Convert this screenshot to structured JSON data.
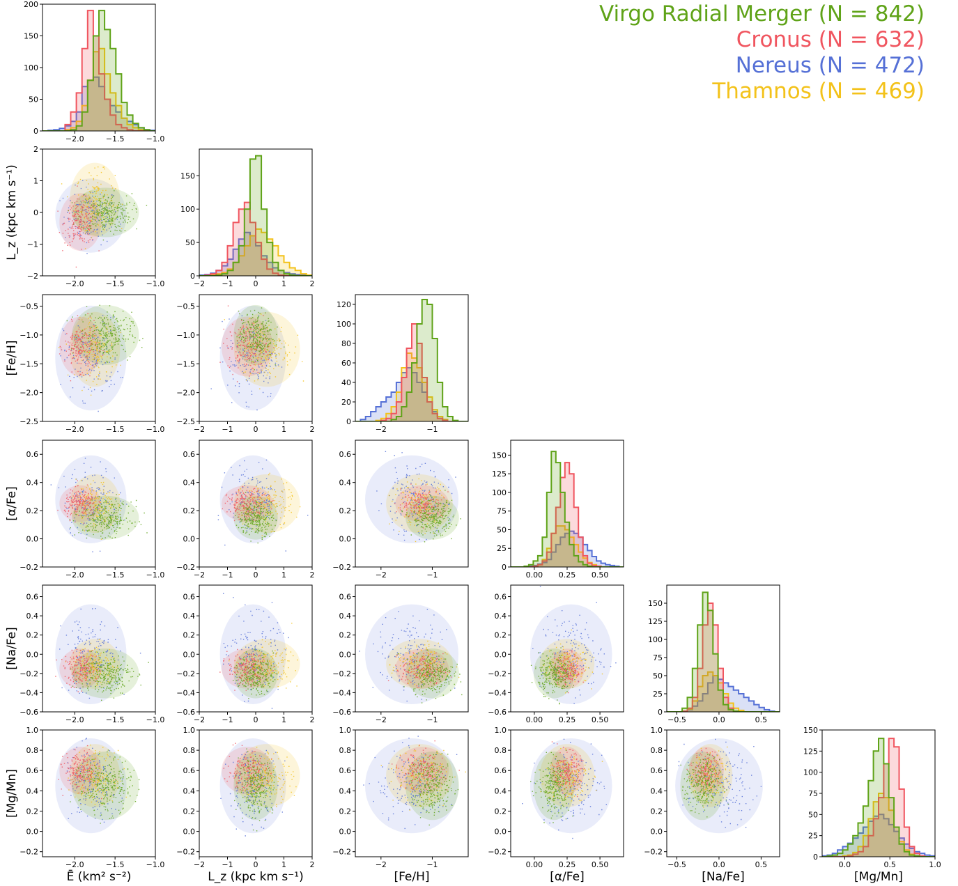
{
  "legend": [
    {
      "label": "Virgo Radial Merger (N = 842)",
      "color": "#5fa318"
    },
    {
      "label": "Cronus (N = 632)",
      "color": "#f0555f"
    },
    {
      "label": "Nereus (N = 472)",
      "color": "#5570d6"
    },
    {
      "label": "Thamnos (N = 469)",
      "color": "#f3c21a"
    }
  ],
  "chart_data": {
    "type": "corner",
    "variables": [
      {
        "id": "E",
        "label": "Ē (km² s⁻²)",
        "range": [
          -2.4,
          -1.0
        ],
        "ticks": [
          -2.0,
          -1.5,
          -1.0
        ],
        "tick_labels": [
          "−2.0",
          "−1.5",
          "−1.0"
        ]
      },
      {
        "id": "Lz",
        "label": "L_z (kpc km s⁻¹)",
        "range": [
          -2,
          2
        ],
        "ticks": [
          -2,
          -1,
          0,
          1,
          2
        ],
        "tick_labels": [
          "−2",
          "−1",
          "0",
          "1",
          "2"
        ]
      },
      {
        "id": "FeH",
        "label": "[Fe/H]",
        "range": [
          -2.5,
          -0.3
        ],
        "ticks": [
          -2,
          -1
        ],
        "tick_labels": [
          "−2",
          "−1"
        ]
      },
      {
        "id": "aFe",
        "label": "[α/Fe]",
        "range": [
          -0.18,
          0.68
        ],
        "ticks": [
          0.0,
          0.25,
          0.5
        ],
        "tick_labels": [
          "0.00",
          "0.25",
          "0.50"
        ]
      },
      {
        "id": "NaFe",
        "label": "[Na/Fe]",
        "range": [
          -0.62,
          0.72
        ],
        "ticks": [
          -0.5,
          0.0,
          0.5
        ],
        "tick_labels": [
          "−0.5",
          "0.0",
          "0.5"
        ]
      },
      {
        "id": "MgMn",
        "label": "[Mg/Mn]",
        "range": [
          -0.25,
          1.0
        ],
        "ticks": [
          0.0,
          0.5,
          1.0
        ],
        "tick_labels": [
          "0.0",
          "0.5",
          "1.0"
        ]
      }
    ],
    "scatter_y_axes": {
      "Lz": {
        "range": [
          -2,
          2
        ],
        "ticks": [
          -2,
          -1,
          0,
          1,
          2
        ],
        "tick_labels": [
          "−2",
          "−1",
          "0",
          "1",
          "2"
        ]
      },
      "FeH": {
        "range": [
          -2.5,
          -0.3
        ],
        "ticks": [
          -2.5,
          -2.0,
          -1.5,
          -1.0,
          -0.5
        ],
        "tick_labels": [
          "−2.5",
          "−2.0",
          "−1.5",
          "−1.0",
          "−0.5"
        ]
      },
      "aFe": {
        "range": [
          -0.2,
          0.7
        ],
        "ticks": [
          -0.2,
          0.0,
          0.2,
          0.4,
          0.6
        ],
        "tick_labels": [
          "−0.2",
          "0.0",
          "0.2",
          "0.4",
          "0.6"
        ]
      },
      "NaFe": {
        "range": [
          -0.6,
          0.72
        ],
        "ticks": [
          -0.6,
          -0.4,
          -0.2,
          0.0,
          0.2,
          0.4,
          0.6
        ],
        "tick_labels": [
          "−0.6",
          "−0.4",
          "−0.2",
          "0.0",
          "0.2",
          "0.4",
          "0.6"
        ]
      },
      "MgMn": {
        "range": [
          -0.25,
          1.0
        ],
        "ticks": [
          -0.2,
          0.0,
          0.2,
          0.4,
          0.6,
          0.8,
          1.0
        ],
        "tick_labels": [
          "−0.2",
          "0.0",
          "0.2",
          "0.4",
          "0.6",
          "0.8",
          "1.0"
        ]
      }
    },
    "hist_y_axes": [
      {
        "max": 200,
        "ticks": [
          0,
          50,
          100,
          150,
          200
        ]
      },
      {
        "max": 190,
        "ticks": [
          0,
          50,
          100,
          150
        ]
      },
      {
        "max": 130,
        "ticks": [
          0,
          20,
          40,
          60,
          80,
          100,
          120
        ]
      },
      {
        "max": 170,
        "ticks": [
          0,
          25,
          50,
          75,
          100,
          125,
          150
        ]
      },
      {
        "max": 175,
        "ticks": [
          0,
          25,
          50,
          75,
          100,
          125,
          150
        ]
      },
      {
        "max": 150,
        "ticks": [
          0,
          25,
          50,
          75,
          100,
          125,
          150
        ]
      }
    ],
    "groups": [
      {
        "name": "Virgo Radial Merger",
        "n": 842,
        "color": "#5fa318",
        "mean": {
          "E": -1.62,
          "Lz": 0.0,
          "FeH": -1.0,
          "aFe": 0.15,
          "NaFe": -0.2,
          "MgMn": 0.45
        },
        "sd": {
          "E": 0.16,
          "Lz": 0.3,
          "FeH": 0.2,
          "aFe": 0.06,
          "NaFe": 0.1,
          "MgMn": 0.13
        }
      },
      {
        "name": "Cronus",
        "n": 632,
        "color": "#f0555f",
        "mean": {
          "E": -1.93,
          "Lz": -0.3,
          "FeH": -1.2,
          "aFe": 0.25,
          "NaFe": -0.15,
          "MgMn": 0.6
        },
        "sd": {
          "E": 0.1,
          "Lz": 0.35,
          "FeH": 0.2,
          "aFe": 0.05,
          "NaFe": 0.08,
          "MgMn": 0.09
        }
      },
      {
        "name": "Nereus",
        "n": 472,
        "color": "#5570d6",
        "mean": {
          "E": -1.8,
          "Lz": -0.1,
          "FeH": -1.4,
          "aFe": 0.28,
          "NaFe": 0.0,
          "MgMn": 0.45
        },
        "sd": {
          "E": 0.17,
          "Lz": 0.45,
          "FeH": 0.35,
          "aFe": 0.12,
          "NaFe": 0.2,
          "MgMn": 0.18
        }
      },
      {
        "name": "Thamnos",
        "n": 469,
        "color": "#f3c21a",
        "mean": {
          "E": -1.75,
          "Lz": 0.4,
          "FeH": -1.25,
          "aFe": 0.25,
          "NaFe": -0.1,
          "MgMn": 0.55
        },
        "sd": {
          "E": 0.12,
          "Lz": 0.45,
          "FeH": 0.25,
          "aFe": 0.08,
          "NaFe": 0.1,
          "MgMn": 0.12
        }
      }
    ],
    "histograms": {
      "E": {
        "bins": [
          -2.4,
          -1.0,
          20
        ],
        "counts": {
          "Virgo Radial Merger": [
            0,
            0,
            0,
            0,
            0,
            2,
            8,
            30,
            80,
            150,
            190,
            160,
            130,
            90,
            45,
            25,
            12,
            5,
            2,
            0
          ],
          "Cronus": [
            0,
            0,
            0,
            0,
            10,
            30,
            60,
            130,
            190,
            150,
            90,
            50,
            25,
            10,
            5,
            2,
            0,
            0,
            0,
            0
          ],
          "Nereus": [
            0,
            1,
            2,
            4,
            8,
            15,
            30,
            70,
            80,
            85,
            70,
            50,
            40,
            30,
            20,
            15,
            10,
            5,
            2,
            1
          ],
          "Thamnos": [
            0,
            0,
            0,
            0,
            2,
            5,
            15,
            40,
            80,
            125,
            130,
            90,
            60,
            40,
            20,
            10,
            5,
            2,
            0,
            0
          ]
        }
      },
      "Lz": {
        "bins": [
          -2,
          2,
          20
        ],
        "counts": {
          "Virgo Radial Merger": [
            0,
            0,
            0,
            1,
            3,
            8,
            20,
            45,
            100,
            175,
            180,
            100,
            50,
            20,
            8,
            3,
            1,
            0,
            0,
            0
          ],
          "Cronus": [
            0,
            1,
            3,
            8,
            20,
            45,
            80,
            100,
            110,
            80,
            50,
            25,
            10,
            4,
            1,
            0,
            0,
            0,
            0,
            0
          ],
          "Nereus": [
            1,
            2,
            4,
            8,
            15,
            25,
            40,
            55,
            65,
            60,
            45,
            30,
            20,
            12,
            8,
            5,
            3,
            2,
            1,
            0
          ],
          "Thamnos": [
            0,
            0,
            1,
            3,
            5,
            10,
            20,
            30,
            45,
            60,
            70,
            65,
            55,
            45,
            30,
            20,
            12,
            8,
            3,
            1
          ]
        }
      },
      "FeH": {
        "bins": [
          -2.5,
          -0.3,
          22
        ],
        "counts": {
          "Virgo Radial Merger": [
            0,
            0,
            0,
            0,
            0,
            0,
            0,
            2,
            5,
            15,
            30,
            60,
            100,
            125,
            120,
            85,
            40,
            15,
            5,
            1,
            0,
            0
          ],
          "Cronus": [
            0,
            0,
            0,
            0,
            0,
            1,
            3,
            8,
            20,
            45,
            75,
            100,
            80,
            45,
            20,
            8,
            3,
            1,
            0,
            0,
            0,
            0
          ],
          "Nereus": [
            0,
            2,
            5,
            10,
            15,
            20,
            25,
            30,
            40,
            50,
            55,
            50,
            40,
            30,
            20,
            10,
            5,
            2,
            0,
            0,
            0,
            0
          ],
          "Thamnos": [
            0,
            0,
            0,
            0,
            1,
            3,
            8,
            15,
            30,
            55,
            70,
            65,
            55,
            40,
            25,
            12,
            5,
            2,
            0,
            0,
            0,
            0
          ]
        }
      },
      "aFe": {
        "bins": [
          -0.18,
          0.68,
          25
        ],
        "counts": {
          "Virgo Radial Merger": [
            0,
            0,
            0,
            1,
            3,
            8,
            15,
            40,
            100,
            155,
            140,
            100,
            60,
            30,
            15,
            7,
            3,
            1,
            0,
            0,
            0,
            0,
            0,
            0,
            0
          ],
          "Cronus": [
            0,
            0,
            0,
            0,
            0,
            1,
            3,
            8,
            20,
            45,
            80,
            120,
            140,
            125,
            80,
            40,
            15,
            5,
            2,
            1,
            0,
            0,
            0,
            0,
            0
          ],
          "Nereus": [
            0,
            0,
            0,
            0,
            1,
            2,
            4,
            6,
            10,
            20,
            30,
            40,
            45,
            48,
            45,
            40,
            30,
            22,
            14,
            8,
            5,
            3,
            2,
            1,
            0
          ],
          "Thamnos": [
            0,
            0,
            0,
            0,
            0,
            1,
            3,
            10,
            25,
            45,
            55,
            55,
            50,
            40,
            30,
            20,
            12,
            6,
            3,
            1,
            0,
            0,
            0,
            0,
            0
          ]
        }
      },
      "NaFe": {
        "bins": [
          -0.62,
          0.72,
          22
        ],
        "counts": {
          "Virgo Radial Merger": [
            0,
            0,
            0,
            5,
            20,
            60,
            120,
            165,
            140,
            80,
            30,
            10,
            3,
            1,
            0,
            0,
            0,
            0,
            0,
            0,
            0,
            0
          ],
          "Cronus": [
            0,
            0,
            0,
            1,
            5,
            20,
            60,
            120,
            150,
            120,
            60,
            20,
            5,
            1,
            0,
            0,
            0,
            0,
            0,
            0,
            0,
            0
          ],
          "Nereus": [
            0,
            0,
            0,
            1,
            3,
            8,
            15,
            25,
            40,
            50,
            45,
            40,
            35,
            30,
            25,
            20,
            15,
            10,
            6,
            3,
            1,
            0
          ],
          "Thamnos": [
            0,
            0,
            0,
            1,
            4,
            15,
            35,
            50,
            55,
            50,
            40,
            25,
            12,
            5,
            2,
            0,
            0,
            0,
            0,
            0,
            0,
            0
          ]
        }
      },
      "MgMn": {
        "bins": [
          -0.25,
          1.0,
          22
        ],
        "counts": {
          "Virgo Radial Merger": [
            0,
            1,
            2,
            4,
            8,
            15,
            25,
            40,
            60,
            90,
            125,
            140,
            110,
            70,
            35,
            15,
            6,
            2,
            1,
            0,
            0,
            0
          ],
          "Cronus": [
            0,
            0,
            0,
            0,
            0,
            1,
            3,
            6,
            12,
            25,
            45,
            70,
            110,
            140,
            130,
            80,
            35,
            12,
            4,
            1,
            0,
            0
          ],
          "Nereus": [
            1,
            2,
            4,
            8,
            12,
            16,
            22,
            28,
            35,
            42,
            48,
            50,
            45,
            38,
            30,
            22,
            15,
            10,
            6,
            4,
            2,
            1
          ],
          "Thamnos": [
            0,
            0,
            0,
            0,
            1,
            2,
            5,
            12,
            25,
            45,
            65,
            75,
            70,
            55,
            35,
            18,
            8,
            3,
            1,
            0,
            0,
            0
          ]
        }
      }
    }
  }
}
